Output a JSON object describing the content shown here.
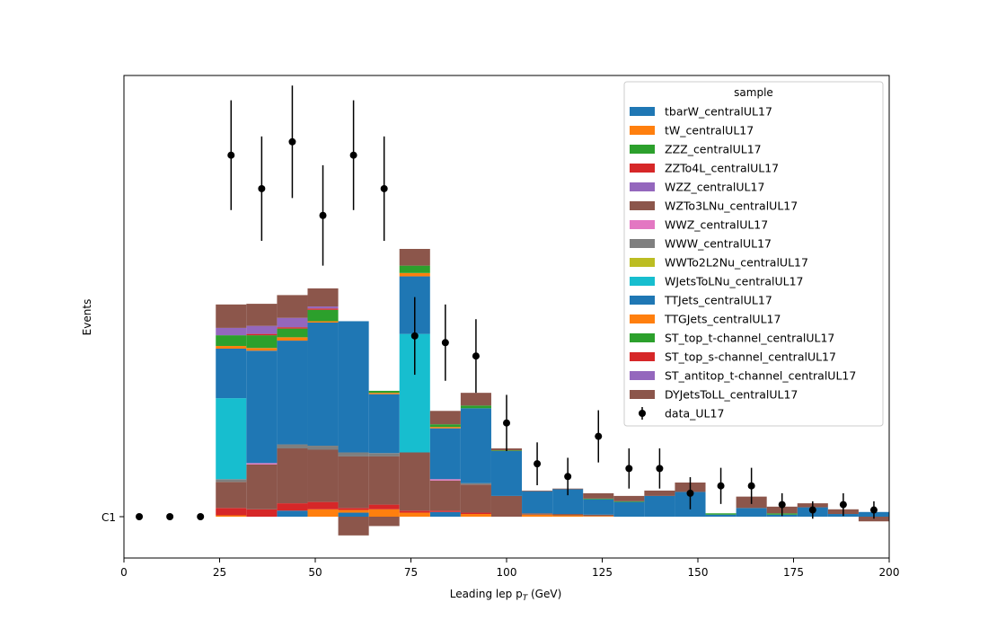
{
  "chart_data": {
    "type": "bar",
    "stacked": true,
    "xlabel": "Leading lep p",
    "xlabel_sub": "T",
    "xlabel_unit": " (GeV)",
    "ylabel": "Events",
    "xlim": [
      0,
      200
    ],
    "x_ticks": [
      0,
      25,
      50,
      75,
      100,
      125,
      150,
      175,
      200
    ],
    "y_tick_label": "C1",
    "grid": false,
    "legend": {
      "title": "sample",
      "placement": "top-right"
    },
    "bin_edges": [
      24,
      32,
      40,
      48,
      56,
      64,
      72,
      80,
      88,
      96,
      104,
      112,
      120,
      128,
      136,
      144,
      152,
      160,
      168,
      176,
      184,
      192,
      200
    ],
    "series": [
      {
        "name": "tbarW_centralUL17",
        "color": "#1f77b4",
        "values": [
          0,
          0,
          0.09,
          0,
          0.06,
          0,
          0,
          0.07,
          0,
          0,
          0,
          0,
          0,
          0,
          0,
          0,
          0,
          0,
          0,
          0,
          0,
          0
        ]
      },
      {
        "name": "tW_centralUL17",
        "color": "#ff7f0e",
        "values": [
          0.02,
          0,
          0,
          0.11,
          0.04,
          0.11,
          0.06,
          0,
          0.04,
          0,
          0.03,
          0.02,
          0.01,
          0,
          0,
          0,
          0,
          0,
          0,
          0,
          0,
          0
        ]
      },
      {
        "name": "ZZZ_centralUL17",
        "color": "#2ca02c",
        "values": [
          0,
          0,
          0,
          0,
          0,
          0,
          0,
          0,
          0,
          0,
          0,
          0,
          0,
          0,
          0,
          0,
          0,
          0,
          0,
          0,
          0,
          0
        ]
      },
      {
        "name": "ZZTo4L_centralUL17",
        "color": "#d62728",
        "values": [
          0.11,
          0.11,
          0.11,
          0.11,
          0.03,
          0.07,
          0.03,
          0.02,
          0.02,
          0,
          0,
          0,
          0,
          0,
          0,
          0,
          0,
          0,
          0,
          0,
          0,
          0
        ]
      },
      {
        "name": "WZZ_centralUL17",
        "color": "#9467bd",
        "values": [
          0,
          0,
          0,
          0,
          0,
          0,
          0,
          0,
          0,
          0,
          0,
          0,
          0,
          0,
          0,
          0,
          0,
          0,
          0,
          0,
          0,
          0
        ]
      },
      {
        "name": "WZTo3LNu_centralUL17",
        "color": "#8c564b",
        "values": [
          0.39,
          0.67,
          0.82,
          0.78,
          0.77,
          0.72,
          0.87,
          0.45,
          0.42,
          0.31,
          0.02,
          0.02,
          0.02,
          0,
          0,
          0,
          0,
          0,
          0,
          0,
          0,
          0
        ]
      },
      {
        "name": "WWZ_centralUL17",
        "color": "#e377c2",
        "values": [
          0,
          0.02,
          0,
          0,
          0,
          0,
          0,
          0.02,
          0,
          0,
          0,
          0,
          0,
          0,
          0,
          0,
          0,
          0,
          0,
          0,
          0,
          0
        ]
      },
      {
        "name": "WWW_centralUL17",
        "color": "#7f7f7f",
        "values": [
          0.04,
          0,
          0.06,
          0.06,
          0.06,
          0.05,
          0,
          0,
          0.02,
          0,
          0,
          0,
          0,
          0,
          0,
          0,
          0,
          0,
          0,
          0,
          0,
          0
        ]
      },
      {
        "name": "WWTo2L2Nu_centralUL17",
        "color": "#bcbd22",
        "values": [
          0,
          0,
          0,
          0,
          0,
          0,
          0,
          0,
          0,
          0,
          0,
          0,
          0,
          0,
          0,
          0,
          0,
          0,
          0,
          0,
          0,
          0
        ]
      },
      {
        "name": "WJetsToLNu_centralUL17",
        "color": "#17becf",
        "values": [
          1.21,
          0,
          0,
          0,
          0,
          0,
          1.77,
          0,
          0,
          0,
          0,
          0,
          0,
          0,
          0,
          0,
          0,
          0,
          0,
          0,
          0,
          0
        ]
      },
      {
        "name": "TTJets_centralUL17",
        "color": "#1f77b4",
        "values": [
          0.74,
          1.68,
          1.55,
          1.84,
          1.96,
          0.88,
          0.86,
          0.76,
          1.12,
          0.67,
          0.33,
          0.37,
          0.23,
          0.22,
          0.31,
          0.37,
          0.03,
          0.13,
          0.03,
          0.14,
          0.04,
          0.07
        ]
      },
      {
        "name": "TTGJets_centralUL17",
        "color": "#ff7f0e",
        "values": [
          0.04,
          0.04,
          0.05,
          0.02,
          0,
          0.02,
          0.05,
          0.02,
          0,
          0,
          0,
          0,
          0,
          0,
          0,
          0,
          0,
          0,
          0,
          0,
          0,
          0
        ]
      },
      {
        "name": "ST_top_t-channel_centralUL17",
        "color": "#2ca02c",
        "values": [
          0.16,
          0.19,
          0.13,
          0.17,
          0,
          0.03,
          0.11,
          0.04,
          0.04,
          0.01,
          0,
          0,
          0.01,
          0.01,
          0,
          0,
          0.02,
          0,
          0.02,
          0,
          0,
          0
        ]
      },
      {
        "name": "ST_top_s-channel_centralUL17",
        "color": "#d62728",
        "values": [
          0,
          0.02,
          0.02,
          0.02,
          0,
          0,
          0,
          0,
          0,
          0,
          0,
          0,
          0,
          0,
          0,
          0,
          0,
          0,
          0,
          0,
          0,
          0
        ]
      },
      {
        "name": "ST_antitop_t-channel_centralUL17",
        "color": "#9467bd",
        "values": [
          0.11,
          0.12,
          0.14,
          0.03,
          0,
          0,
          0,
          0,
          0,
          0,
          0,
          0,
          0,
          0,
          0,
          0,
          0,
          0,
          0,
          0,
          0,
          0
        ]
      },
      {
        "name": "DYJetsToLL_centralUL17",
        "color": "#8c564b",
        "values": [
          0.35,
          0.33,
          0.34,
          0.27,
          -0.28,
          -0.14,
          0.25,
          0.2,
          0.19,
          0.03,
          0.01,
          0.01,
          0.08,
          0.08,
          0.08,
          0.14,
          0,
          0.17,
          0.1,
          0.06,
          0.07,
          -0.07
        ]
      }
    ],
    "data_series": {
      "name": "data_UL17",
      "color": "#000000",
      "x": [
        4,
        12,
        20,
        28,
        36,
        44,
        52,
        60,
        68,
        76,
        84,
        92,
        100,
        108,
        116,
        124,
        132,
        140,
        148,
        156,
        164,
        172,
        180,
        188,
        196
      ],
      "y": [
        0,
        0,
        0,
        5.4,
        4.9,
        5.6,
        4.5,
        5.4,
        4.9,
        2.7,
        2.6,
        2.4,
        1.4,
        0.79,
        0.6,
        1.2,
        0.72,
        0.72,
        0.35,
        0.46,
        0.46,
        0.18,
        0.1,
        0.18,
        0.1
      ],
      "yerr": [
        0,
        0,
        0,
        0.82,
        0.78,
        0.84,
        0.75,
        0.82,
        0.78,
        0.58,
        0.57,
        0.55,
        0.42,
        0.32,
        0.28,
        0.39,
        0.3,
        0.3,
        0.24,
        0.27,
        0.27,
        0.17,
        0.13,
        0.17,
        0.13
      ]
    }
  }
}
